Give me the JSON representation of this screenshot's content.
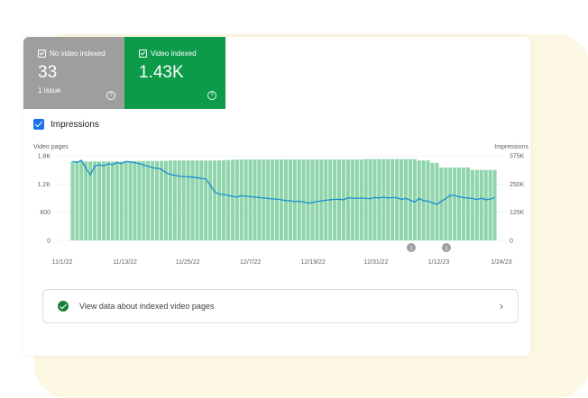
{
  "tiles": [
    {
      "label": "No video indexed",
      "value": "33",
      "sub": "1 issue"
    },
    {
      "label": "Video indexed",
      "value": "1.43K",
      "sub": ""
    }
  ],
  "impressions": {
    "label": "Impressions",
    "checked": true
  },
  "colors": {
    "bars": "#8fd5ab",
    "line": "#1a8ed0",
    "no_indexed": "#9e9e9e",
    "indexed": "#0c9b49",
    "accent": "#1a73e8"
  },
  "chart_data": {
    "type": "bar",
    "left_axis": {
      "label": "Video pages",
      "ticks": [
        "1.8K",
        "1.2K",
        "600",
        "0"
      ],
      "range": [
        0,
        1800
      ]
    },
    "right_axis": {
      "label": "Impressions",
      "ticks": [
        "375K",
        "250K",
        "125K",
        "0"
      ],
      "range": [
        0,
        375000
      ]
    },
    "x_ticks": [
      "11/1/22",
      "11/13/22",
      "11/25/22",
      "12/7/22",
      "12/19/22",
      "12/31/22",
      "1/12/23",
      "1/24/23"
    ],
    "series": [
      {
        "kind": "bar",
        "values": [
          1680,
          1680,
          1680,
          1680,
          1680,
          1680,
          1680,
          1680,
          1680,
          1680,
          1680,
          1680,
          1680,
          1680,
          1690,
          1690,
          1690,
          1690,
          1690,
          1690,
          1690,
          1690,
          1700,
          1700,
          1700,
          1700,
          1700,
          1700,
          1700,
          1700,
          1700,
          1700,
          1700,
          1700,
          1705,
          1710,
          1715,
          1720,
          1720,
          1720,
          1720,
          1720,
          1720,
          1720,
          1720,
          1720,
          1720,
          1720,
          1720,
          1720,
          1720,
          1720,
          1720,
          1720,
          1720,
          1720,
          1720,
          1720,
          1720,
          1720,
          1720,
          1720,
          1720,
          1720,
          1720,
          1720,
          1730,
          1730,
          1730,
          1730,
          1730,
          1730,
          1730,
          1730,
          1730,
          1730,
          1730,
          1730,
          1700,
          1700,
          1700,
          1650,
          1650,
          1550,
          1550,
          1550,
          1550,
          1550,
          1550,
          1550,
          1500,
          1500,
          1500,
          1500,
          1500,
          1500
        ]
      },
      {
        "kind": "line",
        "values": [
          350000,
          345000,
          355000,
          320000,
          290000,
          330000,
          335000,
          330000,
          340000,
          335000,
          345000,
          340000,
          350000,
          348000,
          344000,
          340000,
          335000,
          328000,
          322000,
          320000,
          315000,
          300000,
          293000,
          288000,
          285000,
          283000,
          282000,
          280000,
          278000,
          275000,
          272000,
          245000,
          215000,
          205000,
          203000,
          200000,
          195000,
          192000,
          198000,
          196000,
          194000,
          192000,
          190000,
          188000,
          186000,
          184000,
          183000,
          180000,
          176000,
          176000,
          172000,
          174000,
          170000,
          165000,
          168000,
          172000,
          175000,
          178000,
          180000,
          182000,
          182000,
          180000,
          189000,
          187000,
          186000,
          188000,
          186000,
          185000,
          190000,
          188000,
          192000,
          188000,
          190000,
          189000,
          182000,
          186000,
          178000,
          170000,
          186000,
          176000,
          174000,
          166000,
          160000,
          173000,
          185000,
          200000,
          199000,
          193000,
          190000,
          188000,
          186000,
          181000,
          187000,
          180000,
          183000,
          190000
        ]
      }
    ],
    "annotations": [
      {
        "x": "1/7/23",
        "label": "1"
      },
      {
        "x": "1/16/23",
        "label": "1"
      }
    ]
  },
  "info": {
    "text": "View data about indexed video pages"
  }
}
